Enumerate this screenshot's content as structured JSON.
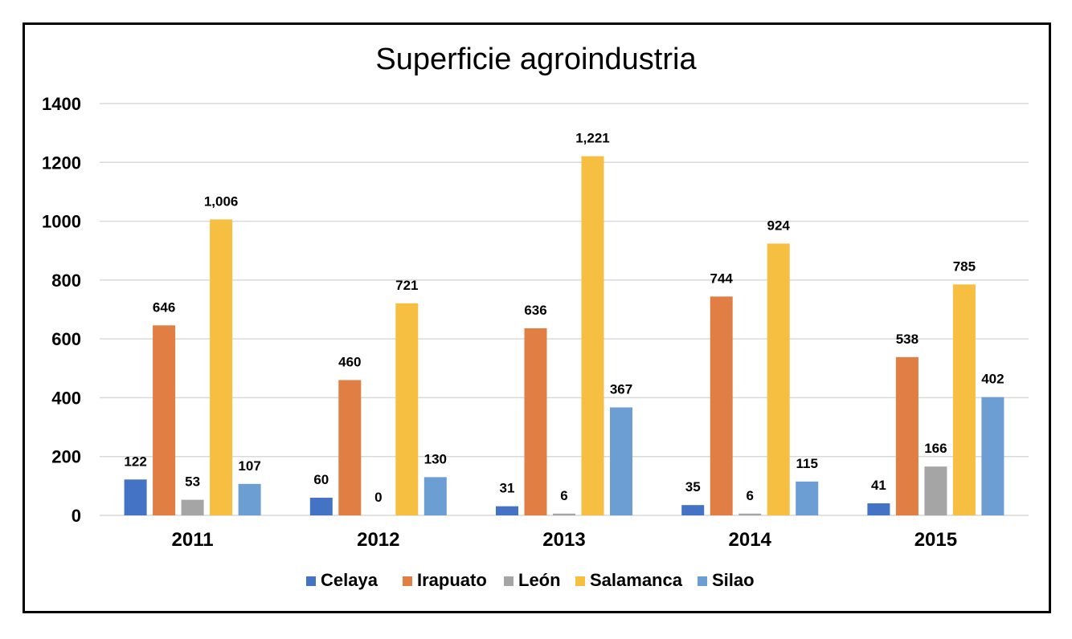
{
  "chart_data": {
    "type": "bar",
    "title": "Superficie agroindustria",
    "xlabel": "",
    "ylabel": "",
    "ylim": [
      0,
      1400
    ],
    "yticks": [
      0,
      200,
      400,
      600,
      800,
      1000,
      1200,
      1400
    ],
    "ytick_labels": [
      "0",
      "200",
      "400",
      "600",
      "800",
      "1000",
      "1200",
      "1400"
    ],
    "grid": true,
    "legend_position": "bottom",
    "categories": [
      "2011",
      "2012",
      "2013",
      "2014",
      "2015"
    ],
    "series": [
      {
        "name": "Celaya",
        "color": "#4472c4",
        "values": [
          122,
          60,
          31,
          35,
          41
        ],
        "labels": [
          "122",
          "60",
          "31",
          "35",
          "41"
        ]
      },
      {
        "name": "Irapuato",
        "color": "#e07e44",
        "values": [
          646,
          460,
          636,
          744,
          538
        ],
        "labels": [
          "646",
          "460",
          "636",
          "744",
          "538"
        ]
      },
      {
        "name": "León",
        "color": "#a5a5a5",
        "values": [
          53,
          0,
          6,
          6,
          166
        ],
        "labels": [
          "53",
          "0",
          "6",
          "6",
          "166"
        ]
      },
      {
        "name": "Salamanca",
        "color": "#f6bf41",
        "values": [
          1006,
          721,
          1221,
          924,
          785
        ],
        "labels": [
          "1,006",
          "721",
          "1,221",
          "924",
          "785"
        ]
      },
      {
        "name": "Silao",
        "color": "#6c9ed4",
        "values": [
          107,
          130,
          367,
          115,
          402
        ],
        "labels": [
          "107",
          "130",
          "367",
          "115",
          "402"
        ]
      }
    ]
  }
}
